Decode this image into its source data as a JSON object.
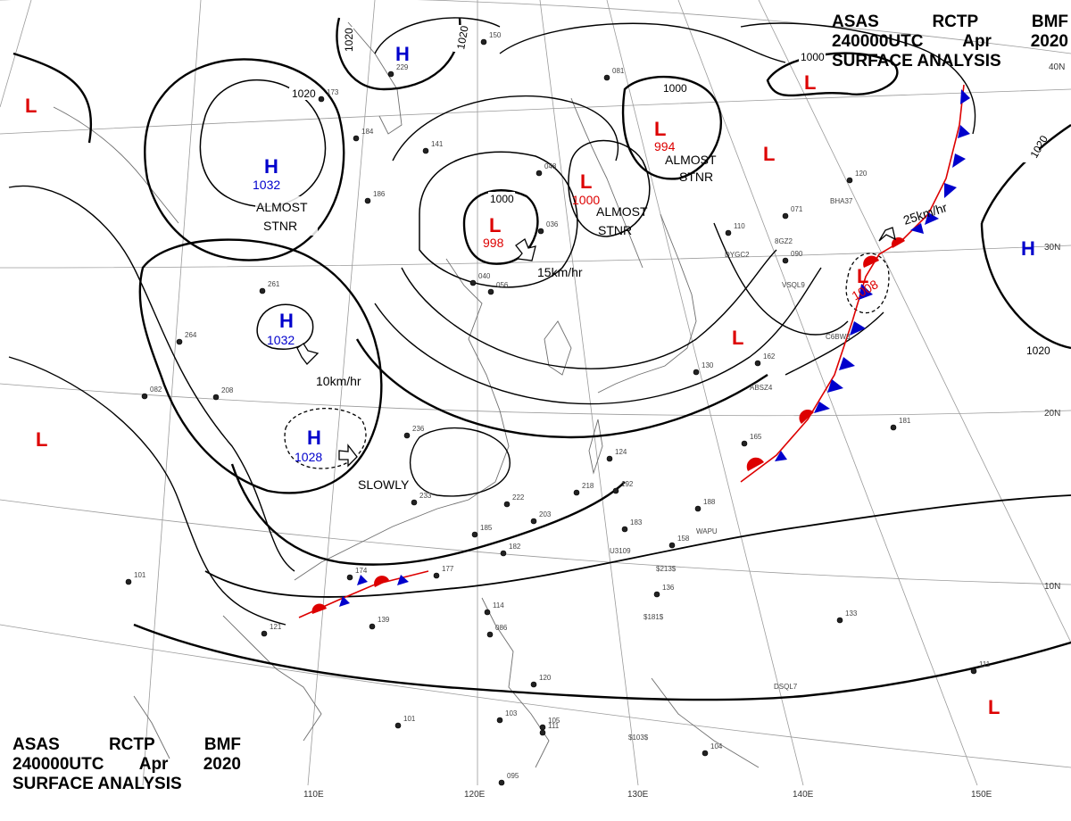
{
  "header": {
    "line1": [
      "ASAS",
      "RCTP",
      "BMF"
    ],
    "line2": [
      "240000UTC",
      "Apr",
      "2020"
    ],
    "line3": "SURFACE ANALYSIS"
  },
  "axes": {
    "lon_labels": [
      "110E",
      "120E",
      "130E",
      "140E",
      "150E"
    ],
    "lat_labels": [
      "40N",
      "30N",
      "20N",
      "10N"
    ]
  },
  "isobar_labels": [
    "1020",
    "1020",
    "1020",
    "1000",
    "1000",
    "1000",
    "1020",
    "1020"
  ],
  "pressure_systems": [
    {
      "type": "H",
      "value": "",
      "color": "#0000cc"
    },
    {
      "type": "H",
      "value": "1032",
      "color": "#0000cc"
    },
    {
      "type": "H",
      "value": "1032",
      "color": "#0000cc"
    },
    {
      "type": "H",
      "value": "1028",
      "color": "#0000cc"
    },
    {
      "type": "H",
      "value": "",
      "color": "#0000cc"
    },
    {
      "type": "L",
      "value": "998",
      "color": "#dd0000"
    },
    {
      "type": "L",
      "value": "1000",
      "color": "#dd0000"
    },
    {
      "type": "L",
      "value": "994",
      "color": "#dd0000"
    },
    {
      "type": "L",
      "value": "1008",
      "color": "#dd0000"
    },
    {
      "type": "L",
      "value": "",
      "color": "#dd0000"
    },
    {
      "type": "L",
      "value": "",
      "color": "#dd0000"
    },
    {
      "type": "L",
      "value": "",
      "color": "#dd0000"
    },
    {
      "type": "L",
      "value": "",
      "color": "#dd0000"
    },
    {
      "type": "L",
      "value": "",
      "color": "#dd0000"
    },
    {
      "type": "L",
      "value": "",
      "color": "#dd0000"
    }
  ],
  "notes": [
    {
      "line1": "ALMOST",
      "line2": "STNR"
    },
    {
      "line1": "ALMOST",
      "line2": "STNR"
    },
    {
      "line1": "ALMOST",
      "line2": "STNR"
    }
  ],
  "movements": [
    "15km/hr",
    "10km/hr",
    "SLOWLY",
    "25km/hr"
  ],
  "station_values": [
    "150",
    "229",
    "173",
    "184",
    "141",
    "186",
    "081",
    "048",
    "036",
    "040",
    "056",
    "261",
    "264",
    "082",
    "208",
    "236",
    "233",
    "222",
    "203",
    "182",
    "185",
    "177",
    "174",
    "139",
    "121",
    "101",
    "114",
    "086",
    "120",
    "105",
    "103",
    "101",
    "111",
    "095",
    "104",
    "133",
    "111",
    "188",
    "158",
    "136",
    "183",
    "192",
    "218",
    "124",
    "165",
    "181",
    "162",
    "130",
    "120",
    "071",
    "090",
    "110"
  ],
  "ship_ids": [
    "BHA37",
    "8GZ2",
    "DYGC2",
    "VSQL9",
    "C6BW3",
    "ABSZ4",
    "WAPU",
    "DSQL7",
    "U3109",
    "$213$",
    "$181$",
    "$103$"
  ],
  "colors": {
    "high": "#0000cc",
    "low": "#dd0000",
    "cold_front": "#0000cc",
    "warm_front": "#dd0000"
  }
}
